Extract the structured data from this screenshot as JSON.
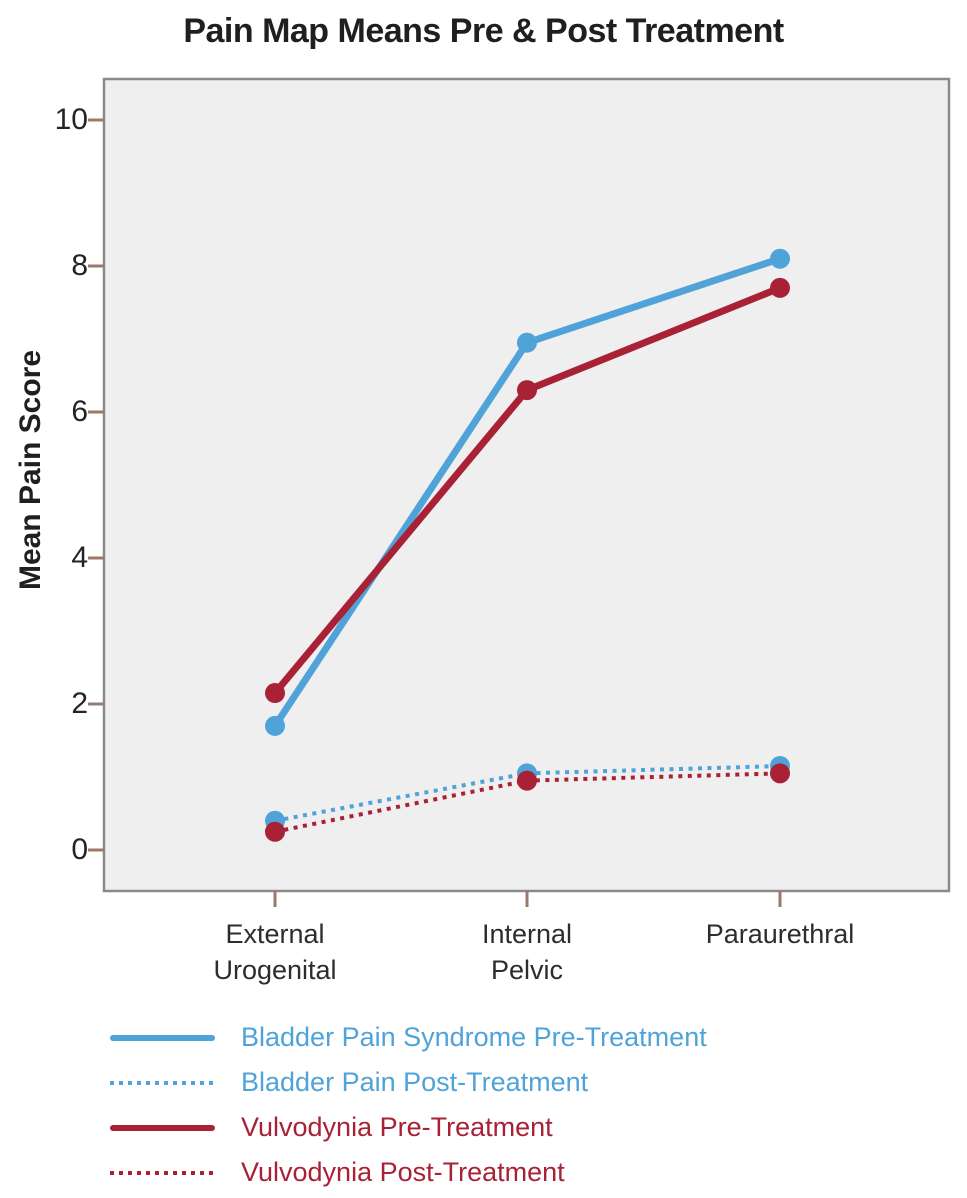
{
  "title": "Pain Map Means Pre & Post Treatment",
  "chart_data": {
    "type": "line",
    "title": "Pain Map Means Pre & Post Treatment",
    "xlabel": "",
    "ylabel": "Mean Pain Score",
    "categories": [
      "External\nUrogenital",
      "Internal\nPelvic",
      "Paraurethral"
    ],
    "yticks": [
      0,
      2,
      4,
      6,
      8,
      10
    ],
    "ylim": [
      -0.55,
      10.55
    ],
    "grid": false,
    "legend_position": "bottom-left",
    "colors": {
      "plot_background": "#efefef",
      "axis_border": "#8a8a8a",
      "tick_mark": "#997a6b",
      "text": "#1f1f1f",
      "blue": "#4fa3d9",
      "red": "#a92135"
    },
    "series": [
      {
        "name": "Bladder Pain Syndrome Pre-Treatment",
        "color": "#4fa3d9",
        "line_style": "solid",
        "values": [
          1.7,
          6.95,
          8.1
        ]
      },
      {
        "name": "Bladder Pain Post-Treatment",
        "color": "#4fa3d9",
        "line_style": "dotted",
        "values": [
          0.4,
          1.05,
          1.15
        ]
      },
      {
        "name": "Vulvodynia Pre-Treatment",
        "color": "#a92135",
        "line_style": "solid",
        "values": [
          2.15,
          6.3,
          7.7
        ]
      },
      {
        "name": "Vulvodynia Post-Treatment",
        "color": "#a92135",
        "line_style": "dotted",
        "values": [
          0.25,
          0.95,
          1.05
        ]
      }
    ]
  }
}
